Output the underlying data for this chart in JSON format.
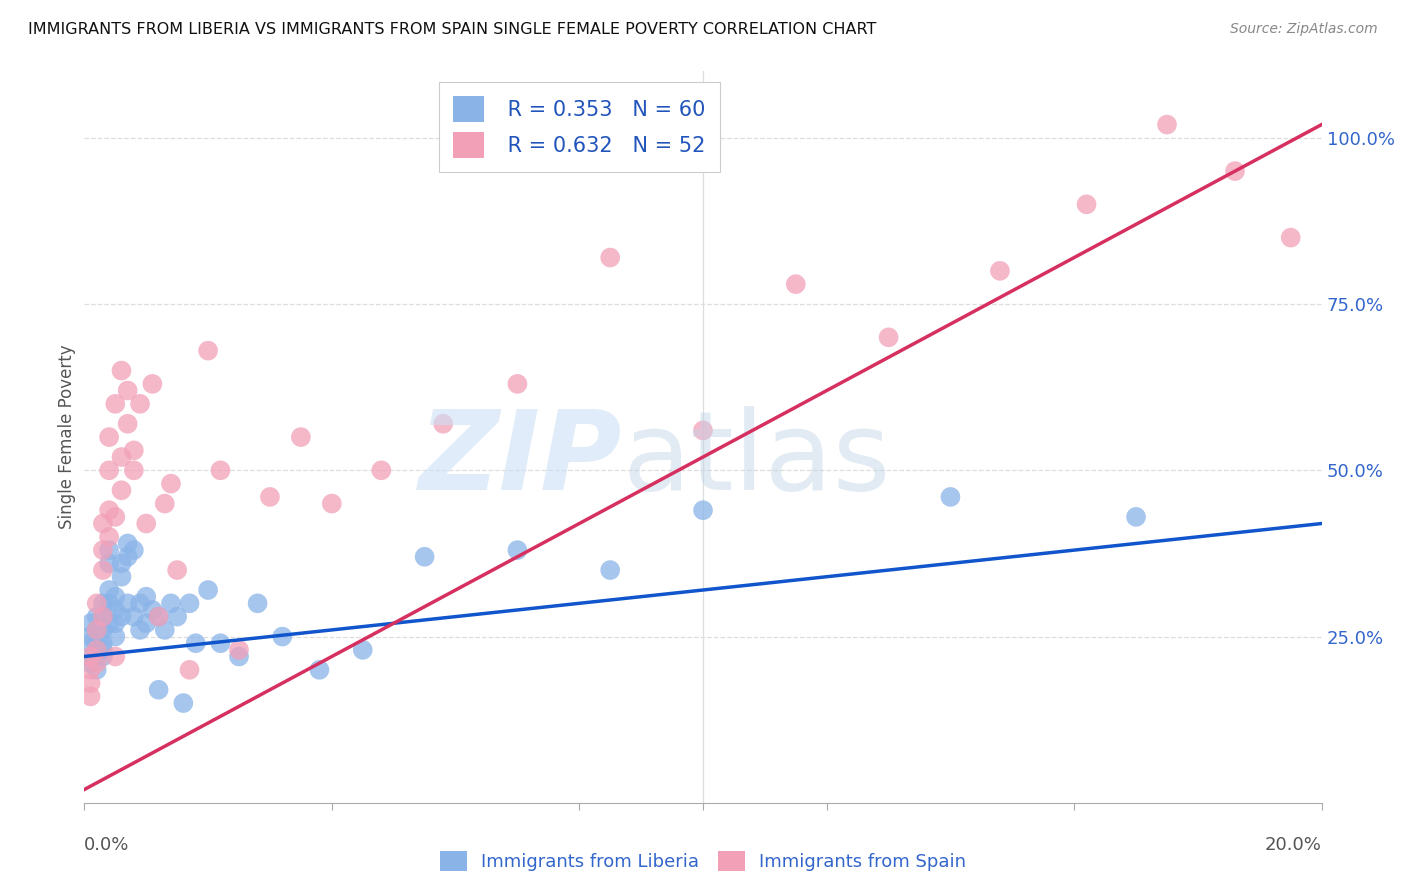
{
  "title": "IMMIGRANTS FROM LIBERIA VS IMMIGRANTS FROM SPAIN SINGLE FEMALE POVERTY CORRELATION CHART",
  "source": "Source: ZipAtlas.com",
  "ylabel": "Single Female Poverty",
  "ylabel_right_ticks": [
    0.25,
    0.5,
    0.75,
    1.0
  ],
  "ylabel_right_labels": [
    "25.0%",
    "50.0%",
    "75.0%",
    "100.0%"
  ],
  "xlim": [
    0.0,
    0.2
  ],
  "ylim": [
    0.0,
    1.1
  ],
  "liberia_R": 0.353,
  "liberia_N": 60,
  "spain_R": 0.632,
  "spain_N": 52,
  "liberia_color": "#8ab4e8",
  "spain_color": "#f2a0b8",
  "liberia_line_color": "#1155cc",
  "spain_line_color": "#d63060",
  "legend_label_liberia": "Immigrants from Liberia",
  "legend_label_spain": "Immigrants from Spain",
  "liberia_x": [
    0.001,
    0.001,
    0.001,
    0.001,
    0.001,
    0.002,
    0.002,
    0.002,
    0.002,
    0.002,
    0.002,
    0.003,
    0.003,
    0.003,
    0.003,
    0.003,
    0.003,
    0.004,
    0.004,
    0.004,
    0.004,
    0.004,
    0.005,
    0.005,
    0.005,
    0.005,
    0.006,
    0.006,
    0.006,
    0.007,
    0.007,
    0.007,
    0.008,
    0.008,
    0.009,
    0.009,
    0.01,
    0.01,
    0.011,
    0.012,
    0.012,
    0.013,
    0.014,
    0.015,
    0.016,
    0.017,
    0.018,
    0.02,
    0.022,
    0.025,
    0.028,
    0.032,
    0.038,
    0.045,
    0.055,
    0.07,
    0.085,
    0.1,
    0.14,
    0.17
  ],
  "liberia_y": [
    0.22,
    0.25,
    0.27,
    0.24,
    0.21,
    0.26,
    0.28,
    0.22,
    0.24,
    0.26,
    0.2,
    0.28,
    0.3,
    0.24,
    0.26,
    0.22,
    0.23,
    0.3,
    0.32,
    0.27,
    0.36,
    0.38,
    0.29,
    0.31,
    0.25,
    0.27,
    0.34,
    0.36,
    0.28,
    0.39,
    0.37,
    0.3,
    0.38,
    0.28,
    0.3,
    0.26,
    0.31,
    0.27,
    0.29,
    0.28,
    0.17,
    0.26,
    0.3,
    0.28,
    0.15,
    0.3,
    0.24,
    0.32,
    0.24,
    0.22,
    0.3,
    0.25,
    0.2,
    0.23,
    0.37,
    0.38,
    0.35,
    0.44,
    0.46,
    0.43
  ],
  "spain_x": [
    0.001,
    0.001,
    0.001,
    0.001,
    0.002,
    0.002,
    0.002,
    0.002,
    0.003,
    0.003,
    0.003,
    0.003,
    0.004,
    0.004,
    0.004,
    0.004,
    0.005,
    0.005,
    0.005,
    0.006,
    0.006,
    0.006,
    0.007,
    0.007,
    0.008,
    0.008,
    0.009,
    0.01,
    0.011,
    0.012,
    0.013,
    0.014,
    0.015,
    0.017,
    0.02,
    0.022,
    0.025,
    0.03,
    0.035,
    0.04,
    0.048,
    0.058,
    0.07,
    0.085,
    0.1,
    0.115,
    0.13,
    0.148,
    0.162,
    0.175,
    0.186,
    0.195
  ],
  "spain_y": [
    0.22,
    0.2,
    0.18,
    0.16,
    0.23,
    0.26,
    0.3,
    0.21,
    0.35,
    0.42,
    0.28,
    0.38,
    0.44,
    0.5,
    0.4,
    0.55,
    0.43,
    0.6,
    0.22,
    0.52,
    0.47,
    0.65,
    0.57,
    0.62,
    0.53,
    0.5,
    0.6,
    0.42,
    0.63,
    0.28,
    0.45,
    0.48,
    0.35,
    0.2,
    0.68,
    0.5,
    0.23,
    0.46,
    0.55,
    0.45,
    0.5,
    0.57,
    0.63,
    0.82,
    0.56,
    0.78,
    0.7,
    0.8,
    0.9,
    1.02,
    0.95,
    0.85
  ],
  "liberia_trendline": [
    0.22,
    0.42
  ],
  "spain_trendline": [
    0.02,
    1.02
  ],
  "grid_color": "#dddddd",
  "spine_color": "#aaaaaa"
}
